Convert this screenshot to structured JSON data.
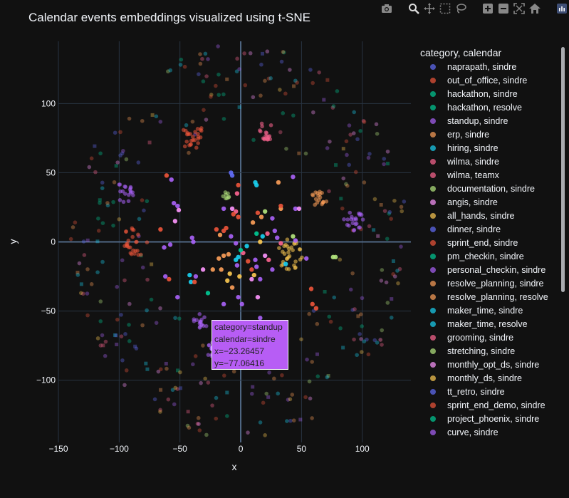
{
  "title": "Calendar events embeddings visualized using t-SNE",
  "toolbar": {
    "icons": [
      "camera-icon",
      "zoom-icon",
      "pan-icon",
      "box-select-icon",
      "lasso-icon",
      "zoom-in-icon",
      "zoom-out-icon",
      "autoscale-icon",
      "home-icon",
      "plotly-logo-icon"
    ]
  },
  "legend": {
    "title": "category, calendar",
    "items": [
      {
        "label": "naprapath, sindre",
        "color": "#636efa"
      },
      {
        "label": "out_of_office, sindre",
        "color": "#ef553b"
      },
      {
        "label": "hackathon, sindre",
        "color": "#00cc96"
      },
      {
        "label": "hackathon, resolve",
        "color": "#00cc96"
      },
      {
        "label": "standup, sindre",
        "color": "#ab63fa"
      },
      {
        "label": "erp, sindre",
        "color": "#ffa15a"
      },
      {
        "label": "hiring, sindre",
        "color": "#19d3f3"
      },
      {
        "label": "wilma, sindre",
        "color": "#ff6692"
      },
      {
        "label": "wilma, teamx",
        "color": "#ff6692"
      },
      {
        "label": "documentation, sindre",
        "color": "#b6e880"
      },
      {
        "label": "angis, sindre",
        "color": "#ff97ff"
      },
      {
        "label": "all_hands, sindre",
        "color": "#fecb52"
      },
      {
        "label": "dinner, sindre",
        "color": "#636efa"
      },
      {
        "label": "sprint_end, sindre",
        "color": "#ef553b"
      },
      {
        "label": "pm_checkin, sindre",
        "color": "#00cc96"
      },
      {
        "label": "personal_checkin, sindre",
        "color": "#ab63fa"
      },
      {
        "label": "resolve_planning, sindre",
        "color": "#ffa15a"
      },
      {
        "label": "resolve_planning, resolve",
        "color": "#ffa15a"
      },
      {
        "label": "maker_time, sindre",
        "color": "#19d3f3"
      },
      {
        "label": "maker_time, resolve",
        "color": "#19d3f3"
      },
      {
        "label": "grooming, sindre",
        "color": "#ff6692"
      },
      {
        "label": "stretching, sindre",
        "color": "#b6e880"
      },
      {
        "label": "monthly_opt_ds, sindre",
        "color": "#ff97ff"
      },
      {
        "label": "monthly_ds, sindre",
        "color": "#fecb52"
      },
      {
        "label": "tt_retro, sindre",
        "color": "#636efa"
      },
      {
        "label": "sprint_end_demo, sindre",
        "color": "#ef553b"
      },
      {
        "label": "project_phoenix, sindre",
        "color": "#00cc96"
      },
      {
        "label": "curve, sindre",
        "color": "#ab63fa"
      }
    ]
  },
  "tooltip": {
    "line1": "category=standup",
    "line2": "calendar=sindre",
    "line3": "x=−23.26457",
    "line4": "y=−77.06416",
    "bg": "#b75df5"
  },
  "chart_data": {
    "type": "scatter",
    "title": "Calendar events embeddings visualized using t-SNE",
    "xlabel": "x",
    "ylabel": "y",
    "xlim": [
      -150,
      140
    ],
    "ylim": [
      -145,
      145
    ],
    "xticks": [
      -150,
      -100,
      -50,
      0,
      50,
      100
    ],
    "yticks": [
      -100,
      -50,
      0,
      50,
      100
    ],
    "xtick_labels": [
      "−150",
      "−100",
      "−50",
      "0",
      "50",
      "100"
    ],
    "ytick_labels": [
      "−100",
      "−50",
      "0",
      "50",
      "100"
    ],
    "grid": true,
    "legend_position": "right",
    "clusters": [
      {
        "category": "wilma",
        "x": -39,
        "y": 76,
        "spread": 10,
        "n": 26,
        "color": "#ef553b"
      },
      {
        "category": "wilma",
        "x": 21,
        "y": 80,
        "spread": 7,
        "n": 18,
        "color": "#ff6692"
      },
      {
        "category": "erp",
        "x": -95,
        "y": 36,
        "spread": 8,
        "n": 18,
        "color": "#ab63fa"
      },
      {
        "category": "erp",
        "x": -87,
        "y": 0,
        "spread": 11,
        "n": 26,
        "color": "#ef553b"
      },
      {
        "category": "all_hands",
        "x": 64,
        "y": 30,
        "spread": 7,
        "n": 18,
        "color": "#ffa15a"
      },
      {
        "category": "dinner",
        "x": 93,
        "y": 14,
        "spread": 9,
        "n": 22,
        "color": "#ab63fa"
      },
      {
        "category": "sprint_end",
        "x": 40,
        "y": -9,
        "spread": 11,
        "n": 32,
        "color": "#fecb52"
      },
      {
        "category": "standup",
        "x": -33,
        "y": -58,
        "spread": 6,
        "n": 16,
        "color": "#ab63fa"
      },
      {
        "category": "standup",
        "x": -23.26457,
        "y": -77.06416,
        "spread": 6,
        "n": 14,
        "color": "#ab63fa"
      },
      {
        "category": "documentation",
        "x": -12,
        "y": 33,
        "spread": 3,
        "n": 8,
        "color": "#b6e880"
      }
    ],
    "singles": [
      {
        "x": -8,
        "y": 50,
        "c": "#636efa"
      },
      {
        "x": -7,
        "y": 48,
        "c": "#636efa"
      },
      {
        "x": 12,
        "y": 43,
        "c": "#19d3f3"
      },
      {
        "x": 13,
        "y": 41,
        "c": "#19d3f3"
      },
      {
        "x": 43,
        "y": 47,
        "c": "#ab63fa"
      },
      {
        "x": 31,
        "y": 43,
        "c": "#ffa15a"
      },
      {
        "x": -61,
        "y": 48,
        "c": "#ef553b"
      },
      {
        "x": -57,
        "y": 45,
        "c": "#ab63fa"
      },
      {
        "x": -2,
        "y": 41,
        "c": "#ef553b"
      },
      {
        "x": -3,
        "y": 35,
        "c": "#ff6692"
      },
      {
        "x": -7,
        "y": 24,
        "c": "#ff97ff"
      },
      {
        "x": -4,
        "y": 22,
        "c": "#ff6692"
      },
      {
        "x": -6,
        "y": 20,
        "c": "#ef553b"
      },
      {
        "x": -2,
        "y": 18,
        "c": "#ef553b"
      },
      {
        "x": -14,
        "y": 24,
        "c": "#ab63fa"
      },
      {
        "x": -55,
        "y": 28,
        "c": "#ab63fa"
      },
      {
        "x": -51,
        "y": 23,
        "c": "#ff97ff"
      },
      {
        "x": -52,
        "y": 26,
        "c": "#ab63fa"
      },
      {
        "x": 14,
        "y": 21,
        "c": "#ef553b"
      },
      {
        "x": 17,
        "y": 18,
        "c": "#ffa15a"
      },
      {
        "x": 20,
        "y": 22,
        "c": "#b6e880"
      },
      {
        "x": 26,
        "y": 17,
        "c": "#ab63fa"
      },
      {
        "x": 33,
        "y": 24,
        "c": "#ffa15a"
      },
      {
        "x": 33,
        "y": 26,
        "c": "#ef553b"
      },
      {
        "x": 45,
        "y": 24,
        "c": "#ab63fa"
      },
      {
        "x": 48,
        "y": 24,
        "c": "#ff97ff"
      },
      {
        "x": -20,
        "y": 9,
        "c": "#ef553b"
      },
      {
        "x": -17,
        "y": 5,
        "c": "#ffa15a"
      },
      {
        "x": -14,
        "y": 8,
        "c": "#ef553b"
      },
      {
        "x": -12,
        "y": 10,
        "c": "#ef553b"
      },
      {
        "x": -8,
        "y": 4,
        "c": "#ab63fa"
      },
      {
        "x": -4,
        "y": -1,
        "c": "#ab63fa"
      },
      {
        "x": -40,
        "y": 3,
        "c": "#ab63fa"
      },
      {
        "x": -39,
        "y": 0,
        "c": "#ab63fa"
      },
      {
        "x": -54,
        "y": 15,
        "c": "#ff97ff"
      },
      {
        "x": -58,
        "y": -2,
        "c": "#ab63fa"
      },
      {
        "x": -63,
        "y": -4,
        "c": "#ab63fa"
      },
      {
        "x": -66,
        "y": 9,
        "c": "#ef553b"
      },
      {
        "x": 10,
        "y": 14,
        "c": "#ffa15a"
      },
      {
        "x": 13,
        "y": 6,
        "c": "#00cc96"
      },
      {
        "x": 16,
        "y": 0,
        "c": "#fecb52"
      },
      {
        "x": 18,
        "y": 4,
        "c": "#19d3f3"
      },
      {
        "x": 22,
        "y": 6,
        "c": "#ff6692"
      },
      {
        "x": 28,
        "y": 8,
        "c": "#ab63fa"
      },
      {
        "x": 30,
        "y": 3,
        "c": "#ab63fa"
      },
      {
        "x": 33,
        "y": -1,
        "c": "#ff6692"
      },
      {
        "x": 43,
        "y": 4,
        "c": "#b6e880"
      },
      {
        "x": 45,
        "y": 1,
        "c": "#ab63fa"
      },
      {
        "x": -18,
        "y": -12,
        "c": "#ffa15a"
      },
      {
        "x": -14,
        "y": -10,
        "c": "#ffa15a"
      },
      {
        "x": -10,
        "y": -9,
        "c": "#ffa15a"
      },
      {
        "x": -4,
        "y": -13,
        "c": "#19d3f3"
      },
      {
        "x": -3,
        "y": -17,
        "c": "#ab63fa"
      },
      {
        "x": -16,
        "y": -20,
        "c": "#ffa15a"
      },
      {
        "x": -9,
        "y": -23,
        "c": "#fecb52"
      },
      {
        "x": -11,
        "y": -28,
        "c": "#fecb52"
      },
      {
        "x": -7,
        "y": -33,
        "c": "#ffa15a"
      },
      {
        "x": -23,
        "y": -20,
        "c": "#ffa15a"
      },
      {
        "x": -31,
        "y": -20,
        "c": "#ff97ff"
      },
      {
        "x": 2,
        "y": -8,
        "c": "#ff6692"
      },
      {
        "x": 6,
        "y": -14,
        "c": "#ef553b"
      },
      {
        "x": 9,
        "y": -20,
        "c": "#ef553b"
      },
      {
        "x": 11,
        "y": -24,
        "c": "#fecb52"
      },
      {
        "x": 9,
        "y": -27,
        "c": "#ff97ff"
      },
      {
        "x": 16,
        "y": -27,
        "c": "#ab63fa"
      },
      {
        "x": 20,
        "y": -10,
        "c": "#ff97ff"
      },
      {
        "x": 23,
        "y": -13,
        "c": "#ff6692"
      },
      {
        "x": 26,
        "y": -20,
        "c": "#ab63fa"
      },
      {
        "x": -42,
        "y": -24,
        "c": "#19d3f3"
      },
      {
        "x": -41,
        "y": -29,
        "c": "#19d3f3"
      },
      {
        "x": -37,
        "y": -25,
        "c": "#ab63fa"
      },
      {
        "x": -62,
        "y": -25,
        "c": "#ab63fa"
      },
      {
        "x": -59,
        "y": -27,
        "c": "#ef553b"
      },
      {
        "x": -38,
        "y": -29,
        "c": "#ef553b"
      },
      {
        "x": -27,
        "y": -37,
        "c": "#00cc96"
      },
      {
        "x": -52,
        "y": -40,
        "c": "#ab63fa"
      },
      {
        "x": -14,
        "y": -45,
        "c": "#ab63fa"
      },
      {
        "x": -2,
        "y": -40,
        "c": "#ab63fa"
      },
      {
        "x": 1,
        "y": -45,
        "c": "#ab63fa"
      },
      {
        "x": 14,
        "y": -40,
        "c": "#ff97ff"
      },
      {
        "x": 16,
        "y": -55,
        "c": "#ab63fa"
      },
      {
        "x": 58,
        "y": -34,
        "c": "#ef553b"
      },
      {
        "x": 59,
        "y": -45,
        "c": "#ef553b"
      },
      {
        "x": 62,
        "y": -48,
        "c": "#ef553b"
      },
      {
        "x": 76,
        "y": -11,
        "c": "#b6e880"
      },
      {
        "x": 78,
        "y": -11,
        "c": "#b6e880"
      },
      {
        "x": 5,
        "y": -3,
        "c": "#19d3f3"
      },
      {
        "x": 0,
        "y": -6,
        "c": "#00cc96"
      },
      {
        "x": -2,
        "y": -11,
        "c": "#19d3f3"
      },
      {
        "x": 12,
        "y": -13,
        "c": "#ab63fa"
      },
      {
        "x": 13,
        "y": -18,
        "c": "#ab63fa"
      },
      {
        "x": 37,
        "y": -16,
        "c": "#19d3f3"
      },
      {
        "x": 54,
        "y": -12,
        "c": "#ab63fa"
      },
      {
        "x": -1,
        "y": -25,
        "c": "#fecb52"
      }
    ],
    "background_rings": {
      "radius_min": 70,
      "radius_max": 140,
      "n": 330,
      "opacity": 0.35
    }
  }
}
